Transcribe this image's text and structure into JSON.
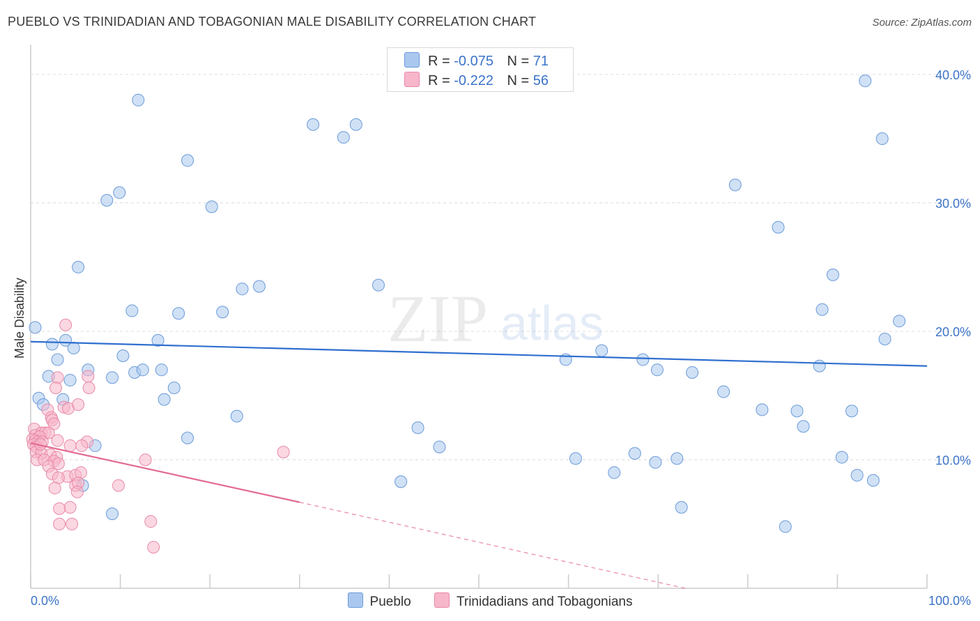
{
  "header": {
    "title": "PUEBLO VS TRINIDADIAN AND TOBAGONIAN MALE DISABILITY CORRELATION CHART",
    "source": "Source: ZipAtlas.com"
  },
  "watermark": {
    "zip": "ZIP",
    "atlas": "atlas"
  },
  "legend": {
    "rows": [
      {
        "r_label": "R =",
        "r_value": "-0.075",
        "n_label": "N =",
        "n_value": "71",
        "color": "#aac8ef"
      },
      {
        "r_label": "R =",
        "r_value": "-0.222",
        "n_label": "N =",
        "n_value": "56",
        "color": "#f7b6ca"
      }
    ]
  },
  "colors": {
    "blue_fill": "#aac8ef",
    "blue_stroke": "#6a9ad8",
    "blue_line": "#2f6fcf",
    "pink_fill": "#f7b6ca",
    "pink_stroke": "#e88aa8",
    "pink_line": "#e36a91",
    "axis_text": "#3b73c9"
  },
  "chart_data": {
    "type": "scatter",
    "xlabel": "",
    "ylabel": "Male Disability",
    "xlim": [
      0,
      100
    ],
    "ylim": [
      0,
      42
    ],
    "x_tick_labels": [
      "0.0%",
      "100.0%"
    ],
    "y_ticks": [
      10,
      20,
      30,
      40
    ],
    "y_tick_labels": [
      "10.0%",
      "20.0%",
      "30.0%",
      "40.0%"
    ],
    "grid": true,
    "legend_position": "bottom",
    "series": [
      {
        "name": "Pueblo",
        "trend": {
          "x": [
            0,
            100
          ],
          "y": [
            19.2,
            17.3
          ]
        },
        "points": [
          [
            12.0,
            38.0
          ],
          [
            8.5,
            30.2
          ],
          [
            9.9,
            30.8
          ],
          [
            17.5,
            33.3
          ],
          [
            20.2,
            29.7
          ],
          [
            31.5,
            36.1
          ],
          [
            34.9,
            35.1
          ],
          [
            36.3,
            36.1
          ],
          [
            5.3,
            25.0
          ],
          [
            11.3,
            21.6
          ],
          [
            16.5,
            21.4
          ],
          [
            21.4,
            21.5
          ],
          [
            23.6,
            23.3
          ],
          [
            25.5,
            23.5
          ],
          [
            38.8,
            23.6
          ],
          [
            2.4,
            19.0
          ],
          [
            3.9,
            19.3
          ],
          [
            4.8,
            18.7
          ],
          [
            3.0,
            17.8
          ],
          [
            10.3,
            18.1
          ],
          [
            14.2,
            19.3
          ],
          [
            6.4,
            17.0
          ],
          [
            9.1,
            16.4
          ],
          [
            11.6,
            16.8
          ],
          [
            12.5,
            17.0
          ],
          [
            14.6,
            17.0
          ],
          [
            2.0,
            16.5
          ],
          [
            4.4,
            16.2
          ],
          [
            16.0,
            15.6
          ],
          [
            0.9,
            14.8
          ],
          [
            1.4,
            14.3
          ],
          [
            3.6,
            14.7
          ],
          [
            14.9,
            14.7
          ],
          [
            23.0,
            13.4
          ],
          [
            17.5,
            11.7
          ],
          [
            7.2,
            11.1
          ],
          [
            5.8,
            8.0
          ],
          [
            9.1,
            5.8
          ],
          [
            43.2,
            12.5
          ],
          [
            45.6,
            11.0
          ],
          [
            41.3,
            8.3
          ],
          [
            59.7,
            17.8
          ],
          [
            63.7,
            18.5
          ],
          [
            68.3,
            17.8
          ],
          [
            69.9,
            17.0
          ],
          [
            73.8,
            16.8
          ],
          [
            77.3,
            15.3
          ],
          [
            81.6,
            13.9
          ],
          [
            85.5,
            13.8
          ],
          [
            86.2,
            12.6
          ],
          [
            88.0,
            17.3
          ],
          [
            90.5,
            10.2
          ],
          [
            60.8,
            10.1
          ],
          [
            65.1,
            9.0
          ],
          [
            67.4,
            10.5
          ],
          [
            69.7,
            9.8
          ],
          [
            72.1,
            10.1
          ],
          [
            72.6,
            6.3
          ],
          [
            84.2,
            4.8
          ],
          [
            92.2,
            8.8
          ],
          [
            91.6,
            13.8
          ],
          [
            94.0,
            8.4
          ],
          [
            78.6,
            31.4
          ],
          [
            83.4,
            28.1
          ],
          [
            89.5,
            24.4
          ],
          [
            88.3,
            21.7
          ],
          [
            95.3,
            19.4
          ],
          [
            96.9,
            20.8
          ],
          [
            95.0,
            35.0
          ],
          [
            93.1,
            39.5
          ],
          [
            0.5,
            20.3
          ]
        ]
      },
      {
        "name": "Trinidadians and Tobagonians",
        "trend": {
          "x": [
            0,
            30
          ],
          "y": [
            11.3,
            6.7
          ]
        },
        "trend_dashed": {
          "x": [
            30,
            73
          ],
          "y": [
            6.7,
            0.0
          ]
        },
        "points": [
          [
            3.9,
            20.5
          ],
          [
            3.0,
            16.4
          ],
          [
            6.4,
            16.5
          ],
          [
            6.5,
            15.6
          ],
          [
            2.8,
            15.6
          ],
          [
            1.9,
            13.9
          ],
          [
            3.7,
            14.1
          ],
          [
            4.2,
            14.0
          ],
          [
            5.3,
            14.3
          ],
          [
            2.3,
            13.3
          ],
          [
            2.4,
            13.1
          ],
          [
            2.6,
            12.8
          ],
          [
            0.4,
            12.4
          ],
          [
            1.2,
            12.1
          ],
          [
            1.6,
            12.1
          ],
          [
            2.0,
            12.1
          ],
          [
            0.5,
            11.9
          ],
          [
            1.0,
            11.8
          ],
          [
            0.2,
            11.6
          ],
          [
            0.5,
            11.5
          ],
          [
            0.8,
            11.4
          ],
          [
            1.3,
            11.4
          ],
          [
            0.3,
            11.2
          ],
          [
            0.6,
            11.0
          ],
          [
            3.0,
            11.5
          ],
          [
            4.4,
            11.1
          ],
          [
            6.3,
            11.4
          ],
          [
            5.7,
            11.1
          ],
          [
            0.6,
            10.6
          ],
          [
            1.2,
            10.5
          ],
          [
            2.2,
            10.4
          ],
          [
            2.9,
            10.2
          ],
          [
            0.7,
            10.0
          ],
          [
            1.5,
            10.0
          ],
          [
            2.6,
            9.9
          ],
          [
            2.0,
            9.5
          ],
          [
            3.1,
            9.7
          ],
          [
            12.8,
            10.0
          ],
          [
            28.2,
            10.6
          ],
          [
            2.4,
            8.9
          ],
          [
            4.1,
            8.7
          ],
          [
            5.0,
            8.8
          ],
          [
            5.6,
            9.0
          ],
          [
            3.1,
            8.6
          ],
          [
            5.0,
            8.0
          ],
          [
            5.3,
            8.2
          ],
          [
            2.7,
            7.8
          ],
          [
            5.2,
            7.5
          ],
          [
            9.8,
            8.0
          ],
          [
            4.4,
            6.3
          ],
          [
            3.2,
            6.2
          ],
          [
            4.6,
            5.0
          ],
          [
            3.2,
            5.0
          ],
          [
            13.4,
            5.2
          ],
          [
            13.7,
            3.2
          ],
          [
            1.1,
            11.2
          ]
        ]
      }
    ]
  }
}
